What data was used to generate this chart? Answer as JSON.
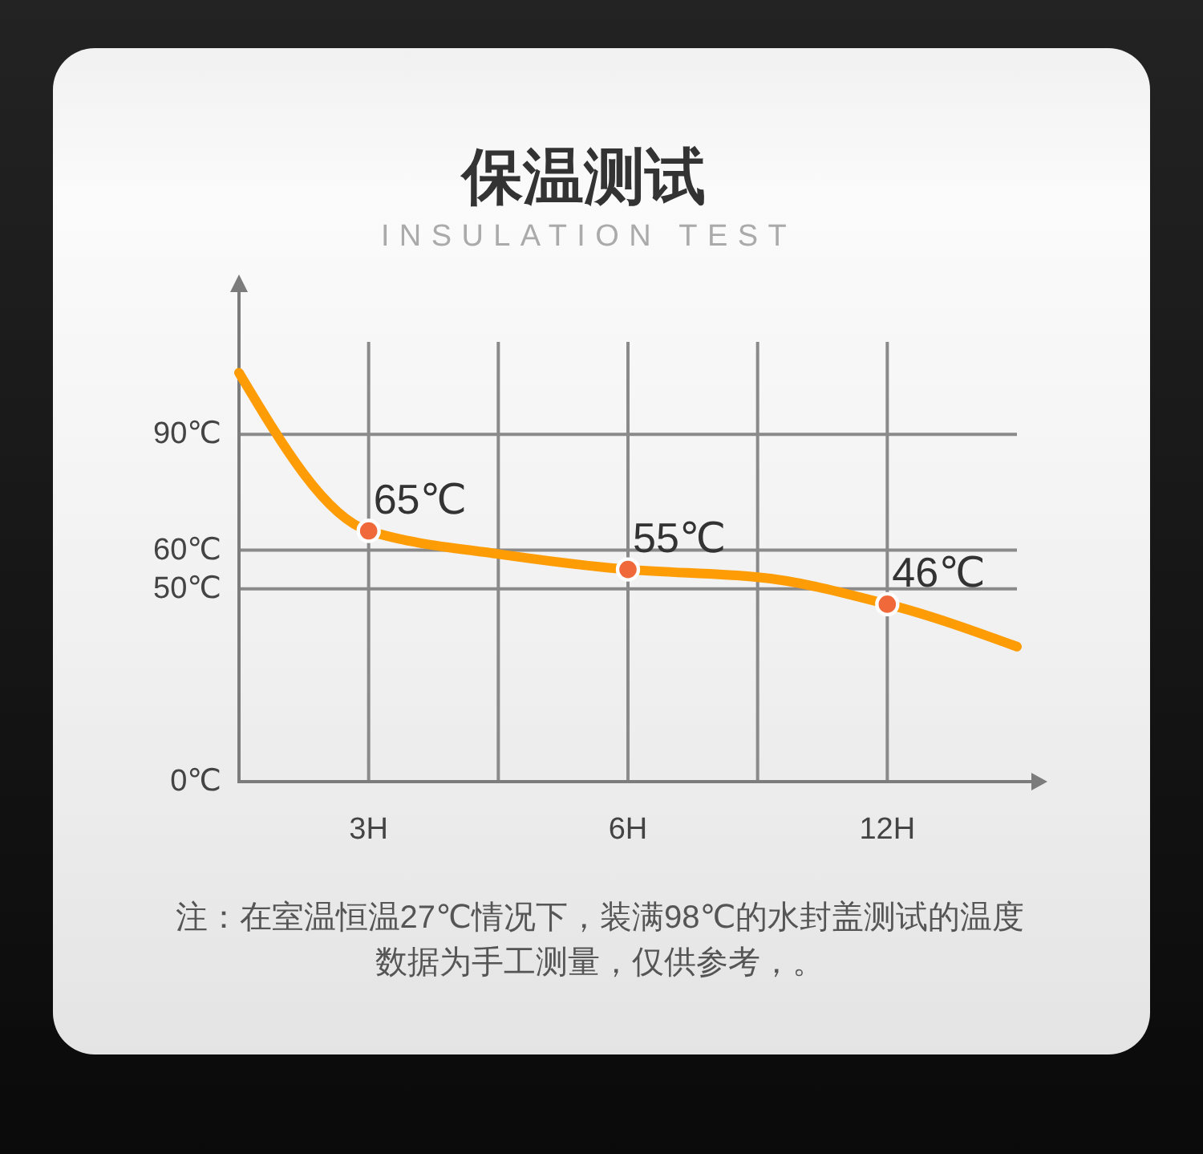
{
  "chart_data": {
    "type": "line",
    "title": "保温测试",
    "subtitle": "INSULATION TEST",
    "categories": [
      null,
      "3H",
      null,
      "6H",
      null,
      "12H",
      null
    ],
    "ylim": [
      0,
      114
    ],
    "yticks": [
      {
        "value": 0,
        "label": "0℃"
      },
      {
        "value": 50,
        "label": "50℃"
      },
      {
        "value": 60,
        "label": "60℃"
      },
      {
        "value": 90,
        "label": "90℃"
      }
    ],
    "grid": true,
    "series": [
      {
        "type": "line",
        "color": "#fe9c05",
        "values": [
          106,
          65,
          59,
          55,
          53,
          46,
          35
        ]
      },
      {
        "type": "scatter",
        "color": "#f0693a",
        "x": [
          "3H",
          "6H",
          "12H"
        ],
        "values": [
          65,
          55,
          46
        ],
        "value_labels": [
          "65℃",
          "55℃",
          "46℃"
        ]
      }
    ],
    "annotations": [
      "注：在室温恒温27℃情况下，装满98℃的水封盖测试的温度数据为手工测量，仅供参考，。"
    ]
  }
}
